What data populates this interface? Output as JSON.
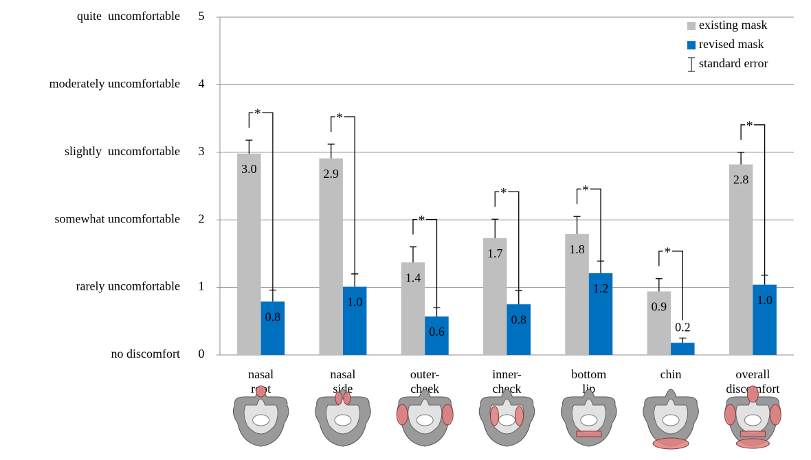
{
  "chart_data": {
    "type": "bar",
    "categories": [
      [
        "nasal",
        "root"
      ],
      [
        "nasal",
        "side"
      ],
      [
        "outer-",
        "cheek"
      ],
      [
        "inner-",
        "check"
      ],
      [
        "bottom",
        "lip"
      ],
      [
        "chin"
      ],
      [
        "overall",
        "discomfort"
      ]
    ],
    "series": [
      {
        "name": "existing mask",
        "color": "#bfbfbf",
        "values": [
          2.98,
          2.91,
          1.37,
          1.73,
          1.79,
          0.94,
          2.82
        ],
        "value_labels": [
          "3.0",
          "2.9",
          "1.4",
          "1.7",
          "1.8",
          "0.9",
          "2.8"
        ],
        "errors": [
          0.2,
          0.21,
          0.23,
          0.28,
          0.26,
          0.19,
          0.18
        ]
      },
      {
        "name": "revised mask",
        "color": "#0070c0",
        "values": [
          0.79,
          1.01,
          0.57,
          0.75,
          1.21,
          0.18,
          1.04
        ],
        "value_labels": [
          "0.8",
          "1.0",
          "0.6",
          "0.8",
          "1.2",
          "0.2",
          "1.0"
        ],
        "errors": [
          0.17,
          0.19,
          0.13,
          0.2,
          0.18,
          0.07,
          0.14
        ]
      }
    ],
    "error_label": "standard error",
    "significance_marks": [
      "*",
      "*",
      "*",
      "*",
      "*",
      "*",
      "*"
    ],
    "ylim": [
      0,
      5
    ],
    "yticks": [
      0,
      1,
      2,
      3,
      4,
      5
    ],
    "ytick_descriptions": [
      "no discomfort",
      "rarely uncomfortable",
      "somewhat uncomfortable",
      "slightly  uncomfortable",
      "moderately uncomfortable",
      "quite  uncomfortable"
    ],
    "grid": true,
    "legend": "top-right"
  }
}
